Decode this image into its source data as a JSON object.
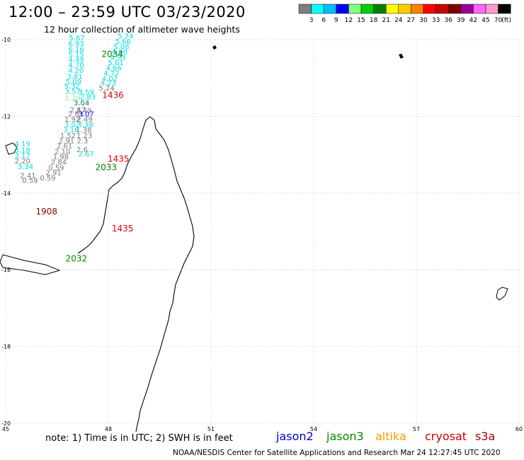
{
  "header": {
    "title": "12:00 – 23:59 UTC 03/23/2020",
    "subtitle": "12 hour collection of altimeter wave heights"
  },
  "colorbar": {
    "colors": [
      "#7f7f7f",
      "#00ffff",
      "#00bfff",
      "#0000ff",
      "#80ff80",
      "#00d000",
      "#008000",
      "#ffff00",
      "#ffcc00",
      "#ff8000",
      "#ff0000",
      "#c80000",
      "#800000",
      "#9a009a",
      "#ff66ff",
      "#ff99cc",
      "#000000"
    ],
    "labels": [
      "3",
      "6",
      "9",
      "12",
      "15",
      "18",
      "21",
      "24",
      "27",
      "30",
      "33",
      "36",
      "39",
      "42",
      "45",
      "70",
      "(ft)"
    ]
  },
  "axes": {
    "x_labels": [
      "45",
      "48",
      "51",
      "54",
      "57",
      "60"
    ],
    "y_labels": [
      "-10",
      "-12",
      "-14",
      "-16",
      "-18",
      "-20"
    ]
  },
  "note": "note: 1) Time is in UTC; 2) SWH is in feet",
  "satellites": [
    {
      "name": "jason2",
      "color": "#0000cc"
    },
    {
      "name": "jason3",
      "color": "#008800"
    },
    {
      "name": "altika",
      "color": "#ff9900"
    },
    {
      "name": "cryosat",
      "color": "#cc0000"
    },
    {
      "name": "s3a",
      "color": "#990000"
    }
  ],
  "footer": "NOAA/NESDIS Center for Satellite Applications and Research    Mar 24 12:27:45 UTC 2020",
  "time_labels": [
    {
      "text": "2034",
      "color": "#008800",
      "lon": 47.8,
      "lat": -10.45
    },
    {
      "text": "1436",
      "color": "#dd0000",
      "lon": 47.82,
      "lat": -11.52
    },
    {
      "text": "1435",
      "color": "#dd0000",
      "lon": 47.98,
      "lat": -13.18
    },
    {
      "text": "2033",
      "color": "#008800",
      "lon": 47.62,
      "lat": -13.4
    },
    {
      "text": "1908",
      "color": "#8b0000",
      "lon": 45.88,
      "lat": -14.56
    },
    {
      "text": "1435",
      "color": "#dd0000",
      "lon": 48.1,
      "lat": -15.0
    },
    {
      "text": "2032",
      "color": "#008800",
      "lon": 46.75,
      "lat": -15.78
    }
  ],
  "wave_heights": [
    {
      "v": "5.74",
      "c": "#00dddd",
      "lon": 48.27,
      "lat": -9.97
    },
    {
      "v": "5.67",
      "c": "#00dddd",
      "lon": 46.85,
      "lat": -10.02
    },
    {
      "v": "5.66",
      "c": "#00dddd",
      "lon": 48.2,
      "lat": -10.11
    },
    {
      "v": "6.93",
      "c": "#00dddd",
      "lon": 46.83,
      "lat": -10.17
    },
    {
      "v": "5.08",
      "c": "#00dddd",
      "lon": 48.15,
      "lat": -10.25
    },
    {
      "v": "6.16",
      "c": "#00dddd",
      "lon": 46.83,
      "lat": -10.31
    },
    {
      "v": "4.90",
      "c": "#00dddd",
      "lon": 48.1,
      "lat": -10.39
    },
    {
      "v": "5.15",
      "c": "#00dddd",
      "lon": 46.83,
      "lat": -10.45
    },
    {
      "v": "4.93",
      "c": "#00dddd",
      "lon": 48.05,
      "lat": -10.53
    },
    {
      "v": "4.49",
      "c": "#00dddd",
      "lon": 46.83,
      "lat": -10.59
    },
    {
      "v": "5.61",
      "c": "#00dddd",
      "lon": 47.99,
      "lat": -10.66
    },
    {
      "v": "4.70",
      "c": "#00dddd",
      "lon": 46.83,
      "lat": -10.73
    },
    {
      "v": "4.66",
      "c": "#00dddd",
      "lon": 47.93,
      "lat": -10.8
    },
    {
      "v": "4.20",
      "c": "#00dddd",
      "lon": 46.82,
      "lat": -10.87
    },
    {
      "v": "4.72",
      "c": "#00dddd",
      "lon": 47.86,
      "lat": -10.94
    },
    {
      "v": "3.81",
      "c": "#00dddd",
      "lon": 46.79,
      "lat": -11.02
    },
    {
      "v": "4.02",
      "c": "#00dddd",
      "lon": 47.81,
      "lat": -11.08
    },
    {
      "v": "5.09",
      "c": "#00dddd",
      "lon": 46.75,
      "lat": -11.16
    },
    {
      "v": "4.23",
      "c": "#00dddd",
      "lon": 47.77,
      "lat": -11.19
    },
    {
      "v": "5.24",
      "c": "#777777",
      "lon": 47.72,
      "lat": -11.33
    },
    {
      "v": "5.32",
      "c": "#00dddd",
      "lon": 46.71,
      "lat": -11.27
    },
    {
      "v": "3.57",
      "c": "#00dddd",
      "lon": 46.73,
      "lat": -11.41
    },
    {
      "v": "3.59",
      "c": "#00dddd",
      "lon": 47.12,
      "lat": -11.43
    },
    {
      "v": "2.83",
      "c": "#00dddd",
      "lon": 47.17,
      "lat": -11.56
    },
    {
      "v": "1.29",
      "c": "#90ee90",
      "lon": 46.73,
      "lat": -11.59
    },
    {
      "v": "3.03",
      "c": "#00dddd",
      "lon": 46.98,
      "lat": -11.71
    },
    {
      "v": "3.04",
      "c": "#777777",
      "lon": 46.99,
      "lat": -11.72
    },
    {
      "v": "2.47",
      "c": "#777777",
      "lon": 46.88,
      "lat": -11.89
    },
    {
      "v": "2.49",
      "c": "#777777",
      "lon": 47.05,
      "lat": -11.91
    },
    {
      "v": "2.63",
      "c": "#777777",
      "lon": 46.82,
      "lat": -12.0
    },
    {
      "v": "3.07",
      "c": "#0000ff",
      "lon": 47.12,
      "lat": -12.0
    },
    {
      "v": "1.92",
      "c": "#777777",
      "lon": 46.72,
      "lat": -12.14
    },
    {
      "v": "2.49",
      "c": "#777777",
      "lon": 47.08,
      "lat": -12.14
    },
    {
      "v": "3.02",
      "c": "#00dddd",
      "lon": 46.72,
      "lat": -12.28
    },
    {
      "v": "3.38",
      "c": "#00dddd",
      "lon": 47.1,
      "lat": -12.28
    },
    {
      "v": "3.16",
      "c": "#00dddd",
      "lon": 46.68,
      "lat": -12.42
    },
    {
      "v": "1.38",
      "c": "#777777",
      "lon": 47.05,
      "lat": -12.42
    },
    {
      "v": "1.52",
      "c": "#777777",
      "lon": 46.59,
      "lat": -12.56
    },
    {
      "v": "1.23",
      "c": "#777777",
      "lon": 47.07,
      "lat": -12.56
    },
    {
      "v": "2.91",
      "c": "#777777",
      "lon": 46.55,
      "lat": -12.7
    },
    {
      "v": "2.3",
      "c": "#777777",
      "lon": 47.08,
      "lat": -12.7
    },
    {
      "v": "4.19",
      "c": "#00dddd",
      "lon": 45.26,
      "lat": -12.78
    },
    {
      "v": "2.61",
      "c": "#777777",
      "lon": 46.49,
      "lat": -12.83
    },
    {
      "v": "2.6",
      "c": "#777777",
      "lon": 47.07,
      "lat": -12.93
    },
    {
      "v": "3.18",
      "c": "#00dddd",
      "lon": 45.26,
      "lat": -12.94
    },
    {
      "v": "2.10",
      "c": "#777777",
      "lon": 46.43,
      "lat": -12.98
    },
    {
      "v": "2.67",
      "c": "#00dddd",
      "lon": 47.12,
      "lat": -13.04
    },
    {
      "v": "3.17",
      "c": "#00dddd",
      "lon": 45.26,
      "lat": -13.08
    },
    {
      "v": "1.98",
      "c": "#777777",
      "lon": 46.38,
      "lat": -13.12
    },
    {
      "v": "2.84",
      "c": "#777777",
      "lon": 46.32,
      "lat": -13.26
    },
    {
      "v": "2.20",
      "c": "#777777",
      "lon": 45.26,
      "lat": -13.23
    },
    {
      "v": "0.59",
      "c": "#777777",
      "lon": 46.25,
      "lat": -13.4
    },
    {
      "v": "3.34",
      "c": "#00dddd",
      "lon": 45.35,
      "lat": -13.38
    },
    {
      "v": "2.91",
      "c": "#777777",
      "lon": 46.17,
      "lat": -13.53
    },
    {
      "v": "2.41",
      "c": "#777777",
      "lon": 45.42,
      "lat": -13.61
    },
    {
      "v": "0.59",
      "c": "#777777",
      "lon": 46.0,
      "lat": -13.67
    },
    {
      "v": "0.59",
      "c": "#777777",
      "lon": 45.48,
      "lat": -13.74
    }
  ]
}
